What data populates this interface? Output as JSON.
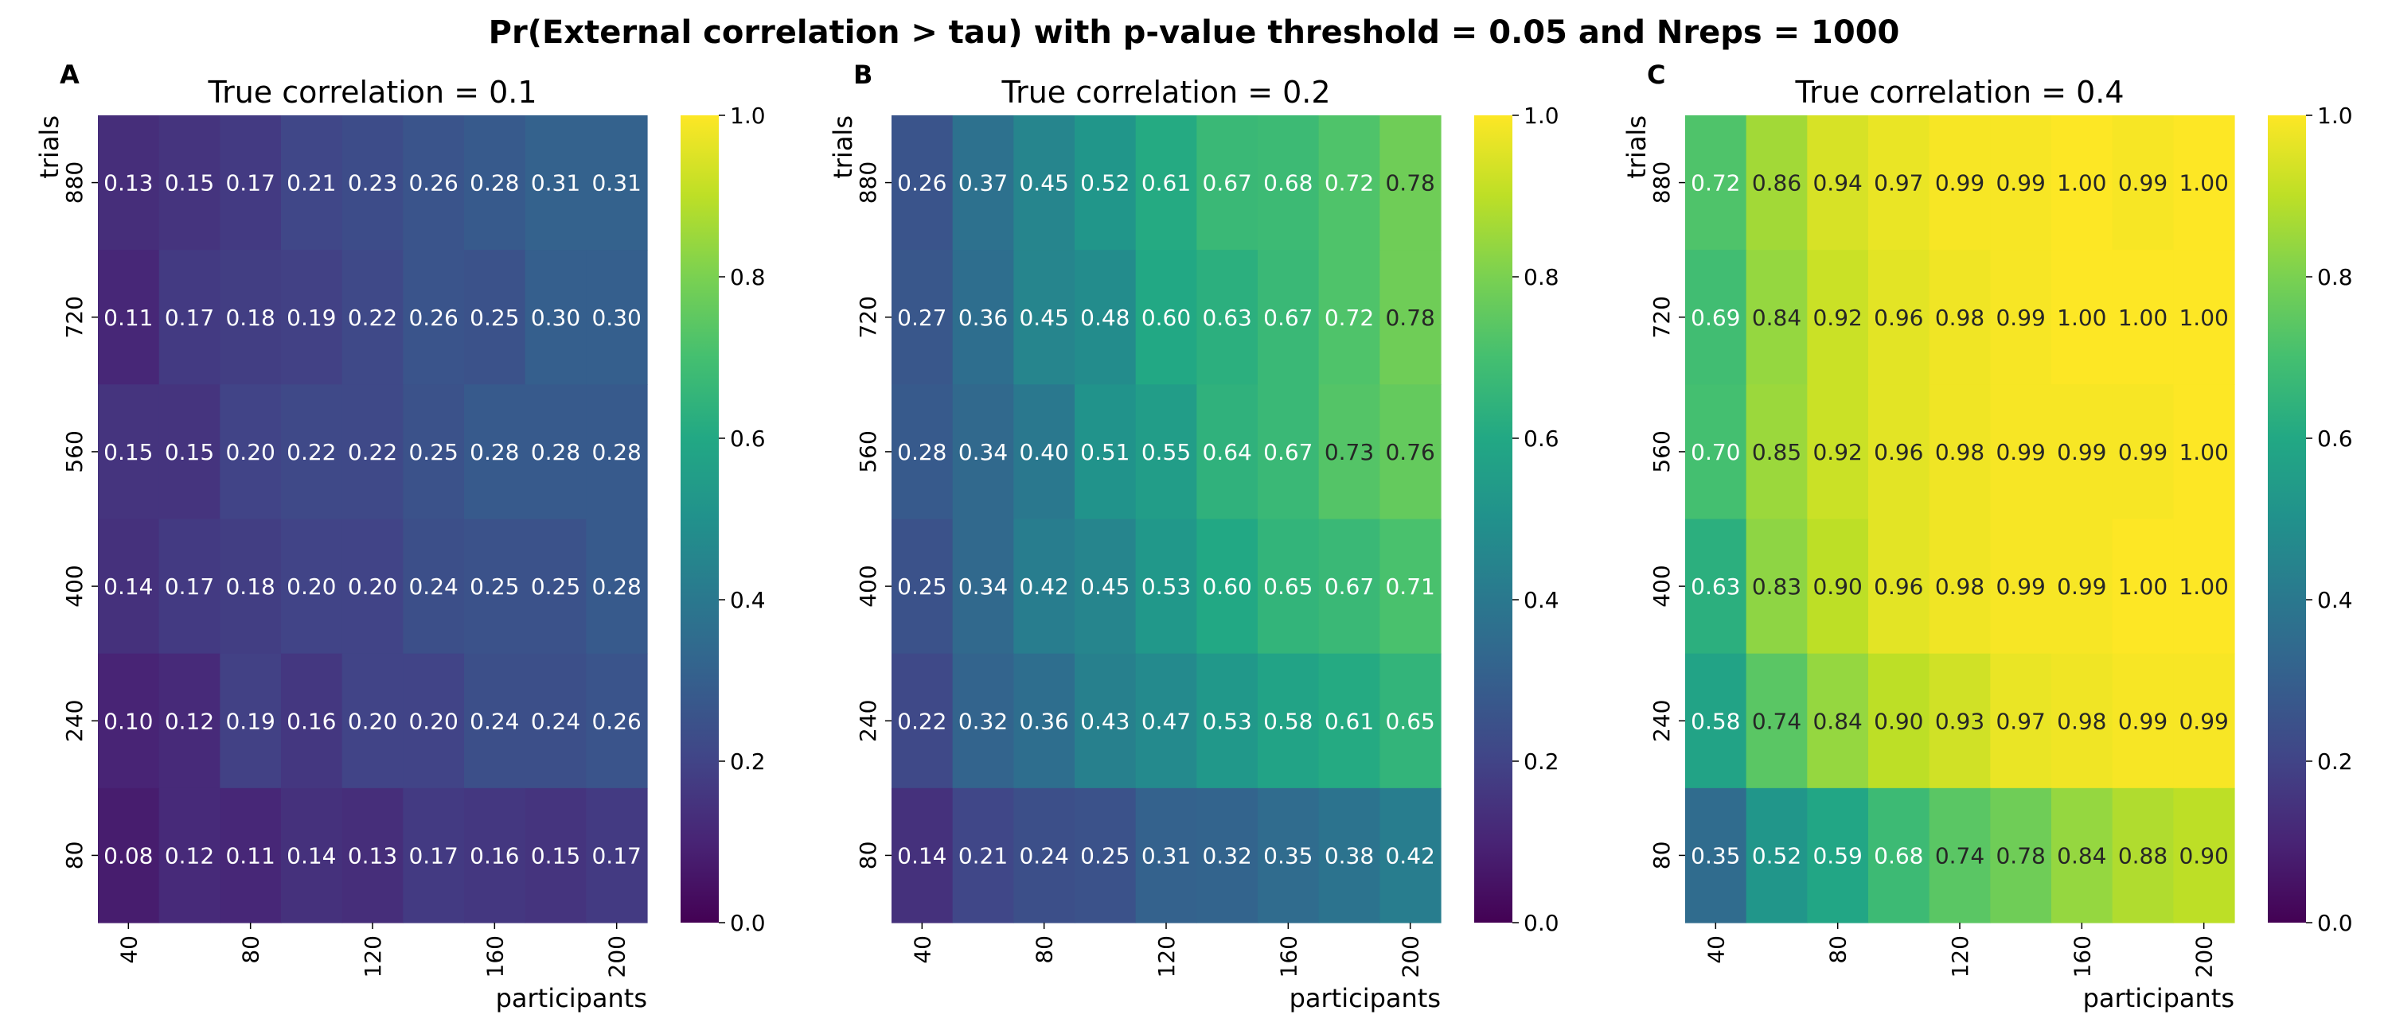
{
  "title": "Pr(External correlation > tau) with p-value threshold = 0.05 and Nreps = 1000",
  "chart_data": [
    {
      "type": "heatmap",
      "panel_letter": "A",
      "title": "True correlation = 0.1",
      "xlabel": "participants",
      "ylabel": "trials",
      "x_categories": [
        "40",
        "60",
        "80",
        "100",
        "120",
        "140",
        "160",
        "180",
        "200"
      ],
      "x_tick_labels": [
        "40",
        "80",
        "120",
        "160",
        "200"
      ],
      "y_categories": [
        "880",
        "720",
        "560",
        "400",
        "240",
        "80"
      ],
      "values": [
        [
          0.13,
          0.15,
          0.17,
          0.21,
          0.23,
          0.26,
          0.28,
          0.31,
          0.31
        ],
        [
          0.11,
          0.17,
          0.18,
          0.19,
          0.22,
          0.26,
          0.25,
          0.3,
          0.3
        ],
        [
          0.15,
          0.15,
          0.2,
          0.22,
          0.22,
          0.25,
          0.28,
          0.28,
          0.28
        ],
        [
          0.14,
          0.17,
          0.18,
          0.2,
          0.2,
          0.24,
          0.25,
          0.25,
          0.28
        ],
        [
          0.1,
          0.12,
          0.19,
          0.16,
          0.2,
          0.2,
          0.24,
          0.24,
          0.26
        ],
        [
          0.08,
          0.12,
          0.11,
          0.14,
          0.13,
          0.17,
          0.16,
          0.15,
          0.17
        ]
      ],
      "colorbar": {
        "colormap": "viridis",
        "range": [
          0.0,
          1.0
        ],
        "ticks": [
          "0.0",
          "0.2",
          "0.4",
          "0.6",
          "0.8",
          "1.0"
        ]
      }
    },
    {
      "type": "heatmap",
      "panel_letter": "B",
      "title": "True correlation = 0.2",
      "xlabel": "participants",
      "ylabel": "trials",
      "x_categories": [
        "40",
        "60",
        "80",
        "100",
        "120",
        "140",
        "160",
        "180",
        "200"
      ],
      "x_tick_labels": [
        "40",
        "80",
        "120",
        "160",
        "200"
      ],
      "y_categories": [
        "880",
        "720",
        "560",
        "400",
        "240",
        "80"
      ],
      "values": [
        [
          0.26,
          0.37,
          0.45,
          0.52,
          0.61,
          0.67,
          0.68,
          0.72,
          0.78
        ],
        [
          0.27,
          0.36,
          0.45,
          0.48,
          0.6,
          0.63,
          0.67,
          0.72,
          0.78
        ],
        [
          0.28,
          0.34,
          0.4,
          0.51,
          0.55,
          0.64,
          0.67,
          0.73,
          0.76
        ],
        [
          0.25,
          0.34,
          0.42,
          0.45,
          0.53,
          0.6,
          0.65,
          0.67,
          0.71
        ],
        [
          0.22,
          0.32,
          0.36,
          0.43,
          0.47,
          0.53,
          0.58,
          0.61,
          0.65
        ],
        [
          0.14,
          0.21,
          0.24,
          0.25,
          0.31,
          0.32,
          0.35,
          0.38,
          0.42
        ]
      ],
      "colorbar": {
        "colormap": "viridis",
        "range": [
          0.0,
          1.0
        ],
        "ticks": [
          "0.0",
          "0.2",
          "0.4",
          "0.6",
          "0.8",
          "1.0"
        ]
      }
    },
    {
      "type": "heatmap",
      "panel_letter": "C",
      "title": "True correlation = 0.4",
      "xlabel": "participants",
      "ylabel": "trials",
      "x_categories": [
        "40",
        "60",
        "80",
        "100",
        "120",
        "140",
        "160",
        "180",
        "200"
      ],
      "x_tick_labels": [
        "40",
        "80",
        "120",
        "160",
        "200"
      ],
      "y_categories": [
        "880",
        "720",
        "560",
        "400",
        "240",
        "80"
      ],
      "values": [
        [
          0.72,
          0.86,
          0.94,
          0.97,
          0.99,
          0.99,
          1.0,
          0.99,
          1.0
        ],
        [
          0.69,
          0.84,
          0.92,
          0.96,
          0.98,
          0.99,
          1.0,
          1.0,
          1.0
        ],
        [
          0.7,
          0.85,
          0.92,
          0.96,
          0.98,
          0.99,
          0.99,
          0.99,
          1.0
        ],
        [
          0.63,
          0.83,
          0.9,
          0.96,
          0.98,
          0.99,
          0.99,
          1.0,
          1.0
        ],
        [
          0.58,
          0.74,
          0.84,
          0.9,
          0.93,
          0.97,
          0.98,
          0.99,
          0.99
        ],
        [
          0.35,
          0.52,
          0.59,
          0.68,
          0.74,
          0.78,
          0.84,
          0.88,
          0.9
        ]
      ],
      "colorbar": {
        "colormap": "viridis",
        "range": [
          0.0,
          1.0
        ],
        "ticks": [
          "0.0",
          "0.2",
          "0.4",
          "0.6",
          "0.8",
          "1.0"
        ]
      }
    }
  ]
}
